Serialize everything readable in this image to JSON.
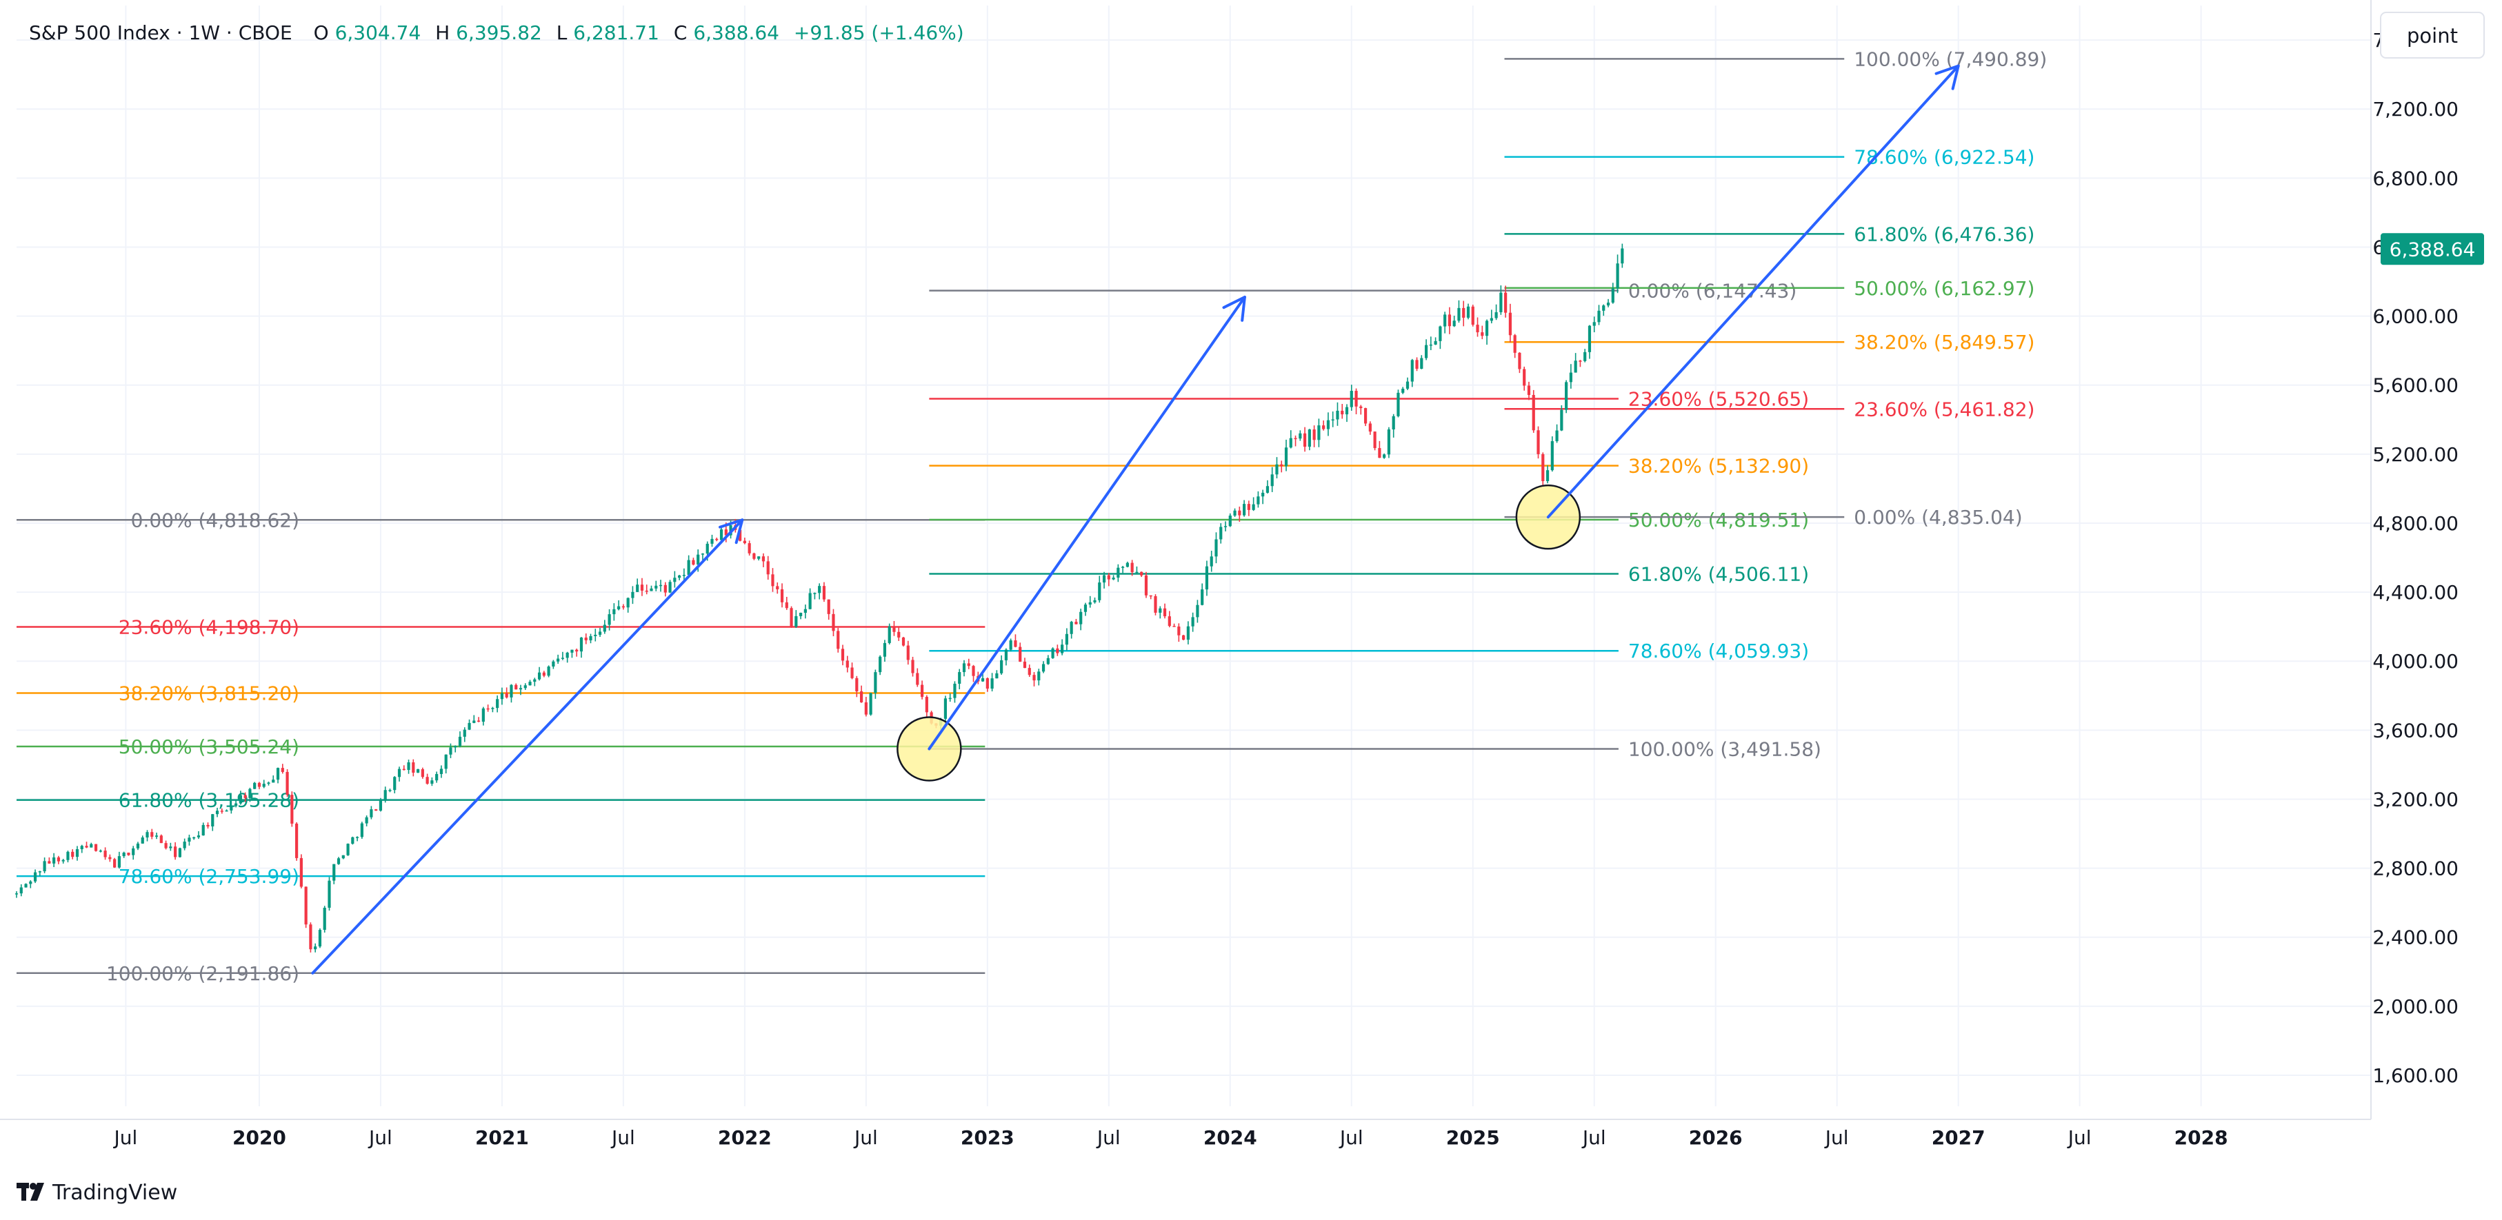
{
  "header": {
    "symbol": "S&P 500 Index · 1W · CBOE",
    "o_label": "O",
    "o_value": "6,304.74",
    "h_label": "H",
    "h_value": "6,395.82",
    "l_label": "L",
    "l_value": "6,281.71",
    "c_label": "C",
    "c_value": "6,388.64",
    "change": "+91.85 (+1.46%)"
  },
  "scale_button": "point",
  "brand": "TradingView",
  "colors": {
    "up": "#089981",
    "down": "#f23645",
    "trend": "#2962ff",
    "level_0": "#787b86",
    "level_236": "#f23645",
    "level_382": "#ff9800",
    "level_50": "#4caf50",
    "level_618": "#089981",
    "level_786": "#00bcd4",
    "level_100": "#787b86",
    "ellipse_fill": "#fff59d",
    "grid": "#f0f3fa",
    "axis_text": "#131722"
  },
  "chart_data": {
    "type": "candlestick",
    "title": "S&P 500 Index · 1W · CBOE",
    "y_axis": {
      "position": "right",
      "ylim": [
        1420,
        7800
      ],
      "ticks": [
        1600,
        2000,
        2400,
        2800,
        3200,
        3600,
        4000,
        4400,
        4800,
        5200,
        5600,
        6000,
        6400,
        6800,
        7200,
        7600
      ],
      "tick_labels": [
        "1,600.00",
        "2,000.00",
        "2,400.00",
        "2,800.00",
        "3,200.00",
        "3,600.00",
        "4,000.00",
        "4,400.00",
        "4,800.00",
        "5,200.00",
        "5,600.00",
        "6,000.00",
        "6,400.00",
        "6,800.00",
        "7,200.00",
        "7,600.00"
      ]
    },
    "x_axis": {
      "xlim": [
        2019.0,
        2028.7
      ],
      "ticks": [
        {
          "x": 2019.45,
          "label": "Jul",
          "bold": false
        },
        {
          "x": 2020.0,
          "label": "2020",
          "bold": true
        },
        {
          "x": 2020.5,
          "label": "Jul",
          "bold": false
        },
        {
          "x": 2021.0,
          "label": "2021",
          "bold": true
        },
        {
          "x": 2021.5,
          "label": "Jul",
          "bold": false
        },
        {
          "x": 2022.0,
          "label": "2022",
          "bold": true
        },
        {
          "x": 2022.5,
          "label": "Jul",
          "bold": false
        },
        {
          "x": 2023.0,
          "label": "2023",
          "bold": true
        },
        {
          "x": 2023.5,
          "label": "Jul",
          "bold": false
        },
        {
          "x": 2024.0,
          "label": "2024",
          "bold": true
        },
        {
          "x": 2024.5,
          "label": "Jul",
          "bold": false
        },
        {
          "x": 2025.0,
          "label": "2025",
          "bold": true
        },
        {
          "x": 2025.5,
          "label": "Jul",
          "bold": false
        },
        {
          "x": 2026.0,
          "label": "2026",
          "bold": true
        },
        {
          "x": 2026.5,
          "label": "Jul",
          "bold": false
        },
        {
          "x": 2027.0,
          "label": "2027",
          "bold": true
        },
        {
          "x": 2027.5,
          "label": "Jul",
          "bold": false
        },
        {
          "x": 2028.0,
          "label": "2028",
          "bold": true
        }
      ]
    },
    "grid": true,
    "last_price": {
      "value": 6388.64,
      "label": "6,388.64"
    },
    "price_path": [
      [
        2019.0,
        2650
      ],
      [
        2019.12,
        2830
      ],
      [
        2019.3,
        2930
      ],
      [
        2019.4,
        2820
      ],
      [
        2019.55,
        3010
      ],
      [
        2019.65,
        2880
      ],
      [
        2019.8,
        3080
      ],
      [
        2019.95,
        3240
      ],
      [
        2020.1,
        3380
      ],
      [
        2020.15,
        2900
      ],
      [
        2020.2,
        2420
      ],
      [
        2020.22,
        2260
      ],
      [
        2020.3,
        2800
      ],
      [
        2020.45,
        3100
      ],
      [
        2020.6,
        3400
      ],
      [
        2020.7,
        3300
      ],
      [
        2020.85,
        3600
      ],
      [
        2021.0,
        3800
      ],
      [
        2021.2,
        3950
      ],
      [
        2021.4,
        4200
      ],
      [
        2021.55,
        4420
      ],
      [
        2021.7,
        4430
      ],
      [
        2021.8,
        4600
      ],
      [
        2021.95,
        4780
      ],
      [
        2022.1,
        4500
      ],
      [
        2022.2,
        4200
      ],
      [
        2022.3,
        4450
      ],
      [
        2022.4,
        4000
      ],
      [
        2022.5,
        3700
      ],
      [
        2022.6,
        4250
      ],
      [
        2022.7,
        3900
      ],
      [
        2022.78,
        3600
      ],
      [
        2022.9,
        4000
      ],
      [
        2023.0,
        3850
      ],
      [
        2023.1,
        4100
      ],
      [
        2023.2,
        3900
      ],
      [
        2023.35,
        4200
      ],
      [
        2023.5,
        4500
      ],
      [
        2023.6,
        4550
      ],
      [
        2023.7,
        4300
      ],
      [
        2023.82,
        4140
      ],
      [
        2023.95,
        4750
      ],
      [
        2024.1,
        4950
      ],
      [
        2024.25,
        5250
      ],
      [
        2024.4,
        5350
      ],
      [
        2024.5,
        5550
      ],
      [
        2024.58,
        5350
      ],
      [
        2024.62,
        5150
      ],
      [
        2024.7,
        5600
      ],
      [
        2024.85,
        5900
      ],
      [
        2024.95,
        6060
      ],
      [
        2025.05,
        5900
      ],
      [
        2025.12,
        6110
      ],
      [
        2025.18,
        5800
      ],
      [
        2025.22,
        5600
      ],
      [
        2025.27,
        5200
      ],
      [
        2025.3,
        4980
      ],
      [
        2025.33,
        5300
      ],
      [
        2025.4,
        5650
      ],
      [
        2025.5,
        5950
      ],
      [
        2025.55,
        6100
      ],
      [
        2025.6,
        6280
      ],
      [
        2025.63,
        6389
      ]
    ],
    "fib_sets": [
      {
        "name": "fib-2020",
        "from": {
          "x": 2020.22,
          "y": 2191.86
        },
        "to": {
          "x": 2022.0,
          "y": 4818.62
        },
        "x_start": 2019.0,
        "x_end": 2022.99,
        "label_side": "left",
        "levels": [
          {
            "pct": 0,
            "value": 4818.62,
            "label": "0.00% (4,818.62)",
            "color": "#787b86"
          },
          {
            "pct": 23.6,
            "value": 4198.7,
            "label": "23.60% (4,198.70)",
            "color": "#f23645"
          },
          {
            "pct": 38.2,
            "value": 3815.2,
            "label": "38.20% (3,815.20)",
            "color": "#ff9800"
          },
          {
            "pct": 50,
            "value": 3505.24,
            "label": "50.00% (3,505.24)",
            "color": "#4caf50"
          },
          {
            "pct": 61.8,
            "value": 3195.28,
            "label": "61.80% (3,195.28)",
            "color": "#089981"
          },
          {
            "pct": 78.6,
            "value": 2753.99,
            "label": "78.60% (2,753.99)",
            "color": "#00bcd4"
          },
          {
            "pct": 100,
            "value": 2191.86,
            "label": "100.00% (2,191.86)",
            "color": "#787b86"
          }
        ]
      },
      {
        "name": "fib-2022",
        "from": {
          "x": 2022.76,
          "y": 3491.58
        },
        "to": {
          "x": 2024.6,
          "y": 6147.43
        },
        "x_start": 2022.76,
        "x_end": 2025.6,
        "label_side": "right",
        "levels": [
          {
            "pct": 0,
            "value": 6147.43,
            "label": "0.00% (6,147.43)",
            "color": "#787b86"
          },
          {
            "pct": 23.6,
            "value": 5520.65,
            "label": "23.60% (5,520.65)",
            "color": "#f23645"
          },
          {
            "pct": 38.2,
            "value": 5132.9,
            "label": "38.20% (5,132.90)",
            "color": "#ff9800"
          },
          {
            "pct": 50,
            "value": 4819.51,
            "label": "50.00% (4,819.51)",
            "color": "#4caf50"
          },
          {
            "pct": 61.8,
            "value": 4506.11,
            "label": "61.80% (4,506.11)",
            "color": "#089981"
          },
          {
            "pct": 78.6,
            "value": 4059.93,
            "label": "78.60% (4,059.93)",
            "color": "#00bcd4"
          },
          {
            "pct": 100,
            "value": 3491.58,
            "label": "100.00% (3,491.58)",
            "color": "#787b86"
          }
        ]
      },
      {
        "name": "fib-2025",
        "from": {
          "x": 2025.31,
          "y": 4835.04
        },
        "to": {
          "x": 2027.0,
          "y": 7490.89
        },
        "x_start": 2025.13,
        "x_end": 2026.53,
        "label_side": "right",
        "levels": [
          {
            "pct": 0,
            "value": 4835.04,
            "label": "0.00% (4,835.04)",
            "color": "#787b86"
          },
          {
            "pct": 23.6,
            "value": 5461.82,
            "label": "23.60% (5,461.82)",
            "color": "#f23645"
          },
          {
            "pct": 38.2,
            "value": 5849.57,
            "label": "38.20% (5,849.57)",
            "color": "#ff9800"
          },
          {
            "pct": 50,
            "value": 6162.97,
            "label": "50.00% (6,162.97)",
            "color": "#4caf50"
          },
          {
            "pct": 61.8,
            "value": 6476.36,
            "label": "61.80% (6,476.36)",
            "color": "#089981"
          },
          {
            "pct": 78.6,
            "value": 6922.54,
            "label": "78.60% (6,922.54)",
            "color": "#00bcd4"
          },
          {
            "pct": 100,
            "value": 7490.89,
            "label": "100.00% (7,490.89)",
            "color": "#787b86"
          }
        ]
      }
    ],
    "trend_arrows": [
      {
        "name": "arrow-2020",
        "from": {
          "x": 2020.22,
          "y": 2191.86
        },
        "to": {
          "x": 2021.99,
          "y": 4818.62
        }
      },
      {
        "name": "arrow-2022",
        "from": {
          "x": 2022.76,
          "y": 3491.58
        },
        "to": {
          "x": 2024.06,
          "y": 6110.0
        }
      },
      {
        "name": "arrow-2025",
        "from": {
          "x": 2025.31,
          "y": 4835.04
        },
        "to": {
          "x": 2027.0,
          "y": 7450.0
        }
      }
    ],
    "highlight_circles": [
      {
        "name": "circle-2022-low",
        "x": 2022.76,
        "y": 3491.58
      },
      {
        "name": "circle-2025-low",
        "x": 2025.31,
        "y": 4835.04
      }
    ]
  }
}
